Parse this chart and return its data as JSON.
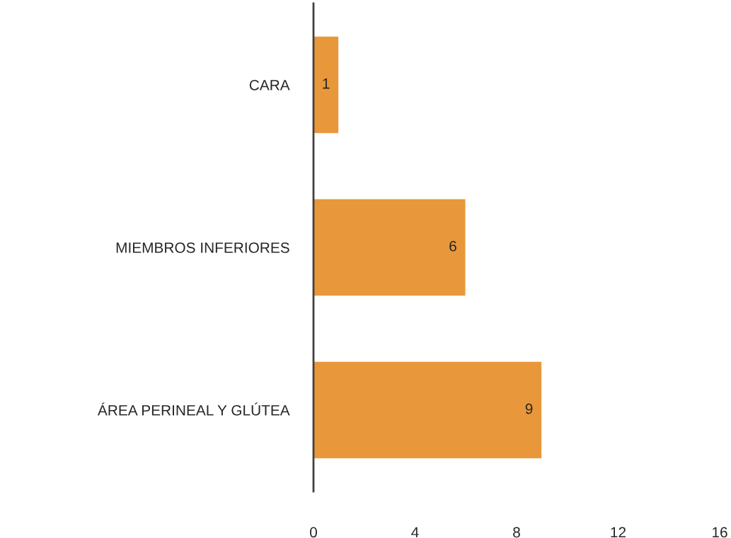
{
  "chart_data": {
    "type": "bar",
    "orientation": "horizontal",
    "categories": [
      "CARA",
      "MIEMBROS INFERIORES",
      "ÁREA PERINEAL Y GLÚTEA"
    ],
    "values": [
      1,
      6,
      9
    ],
    "color": "#e8983a",
    "xlim": [
      0,
      16
    ],
    "xticks": [
      0,
      4,
      8,
      12,
      16
    ],
    "data_labels": true,
    "grid": false,
    "legend": false
  }
}
